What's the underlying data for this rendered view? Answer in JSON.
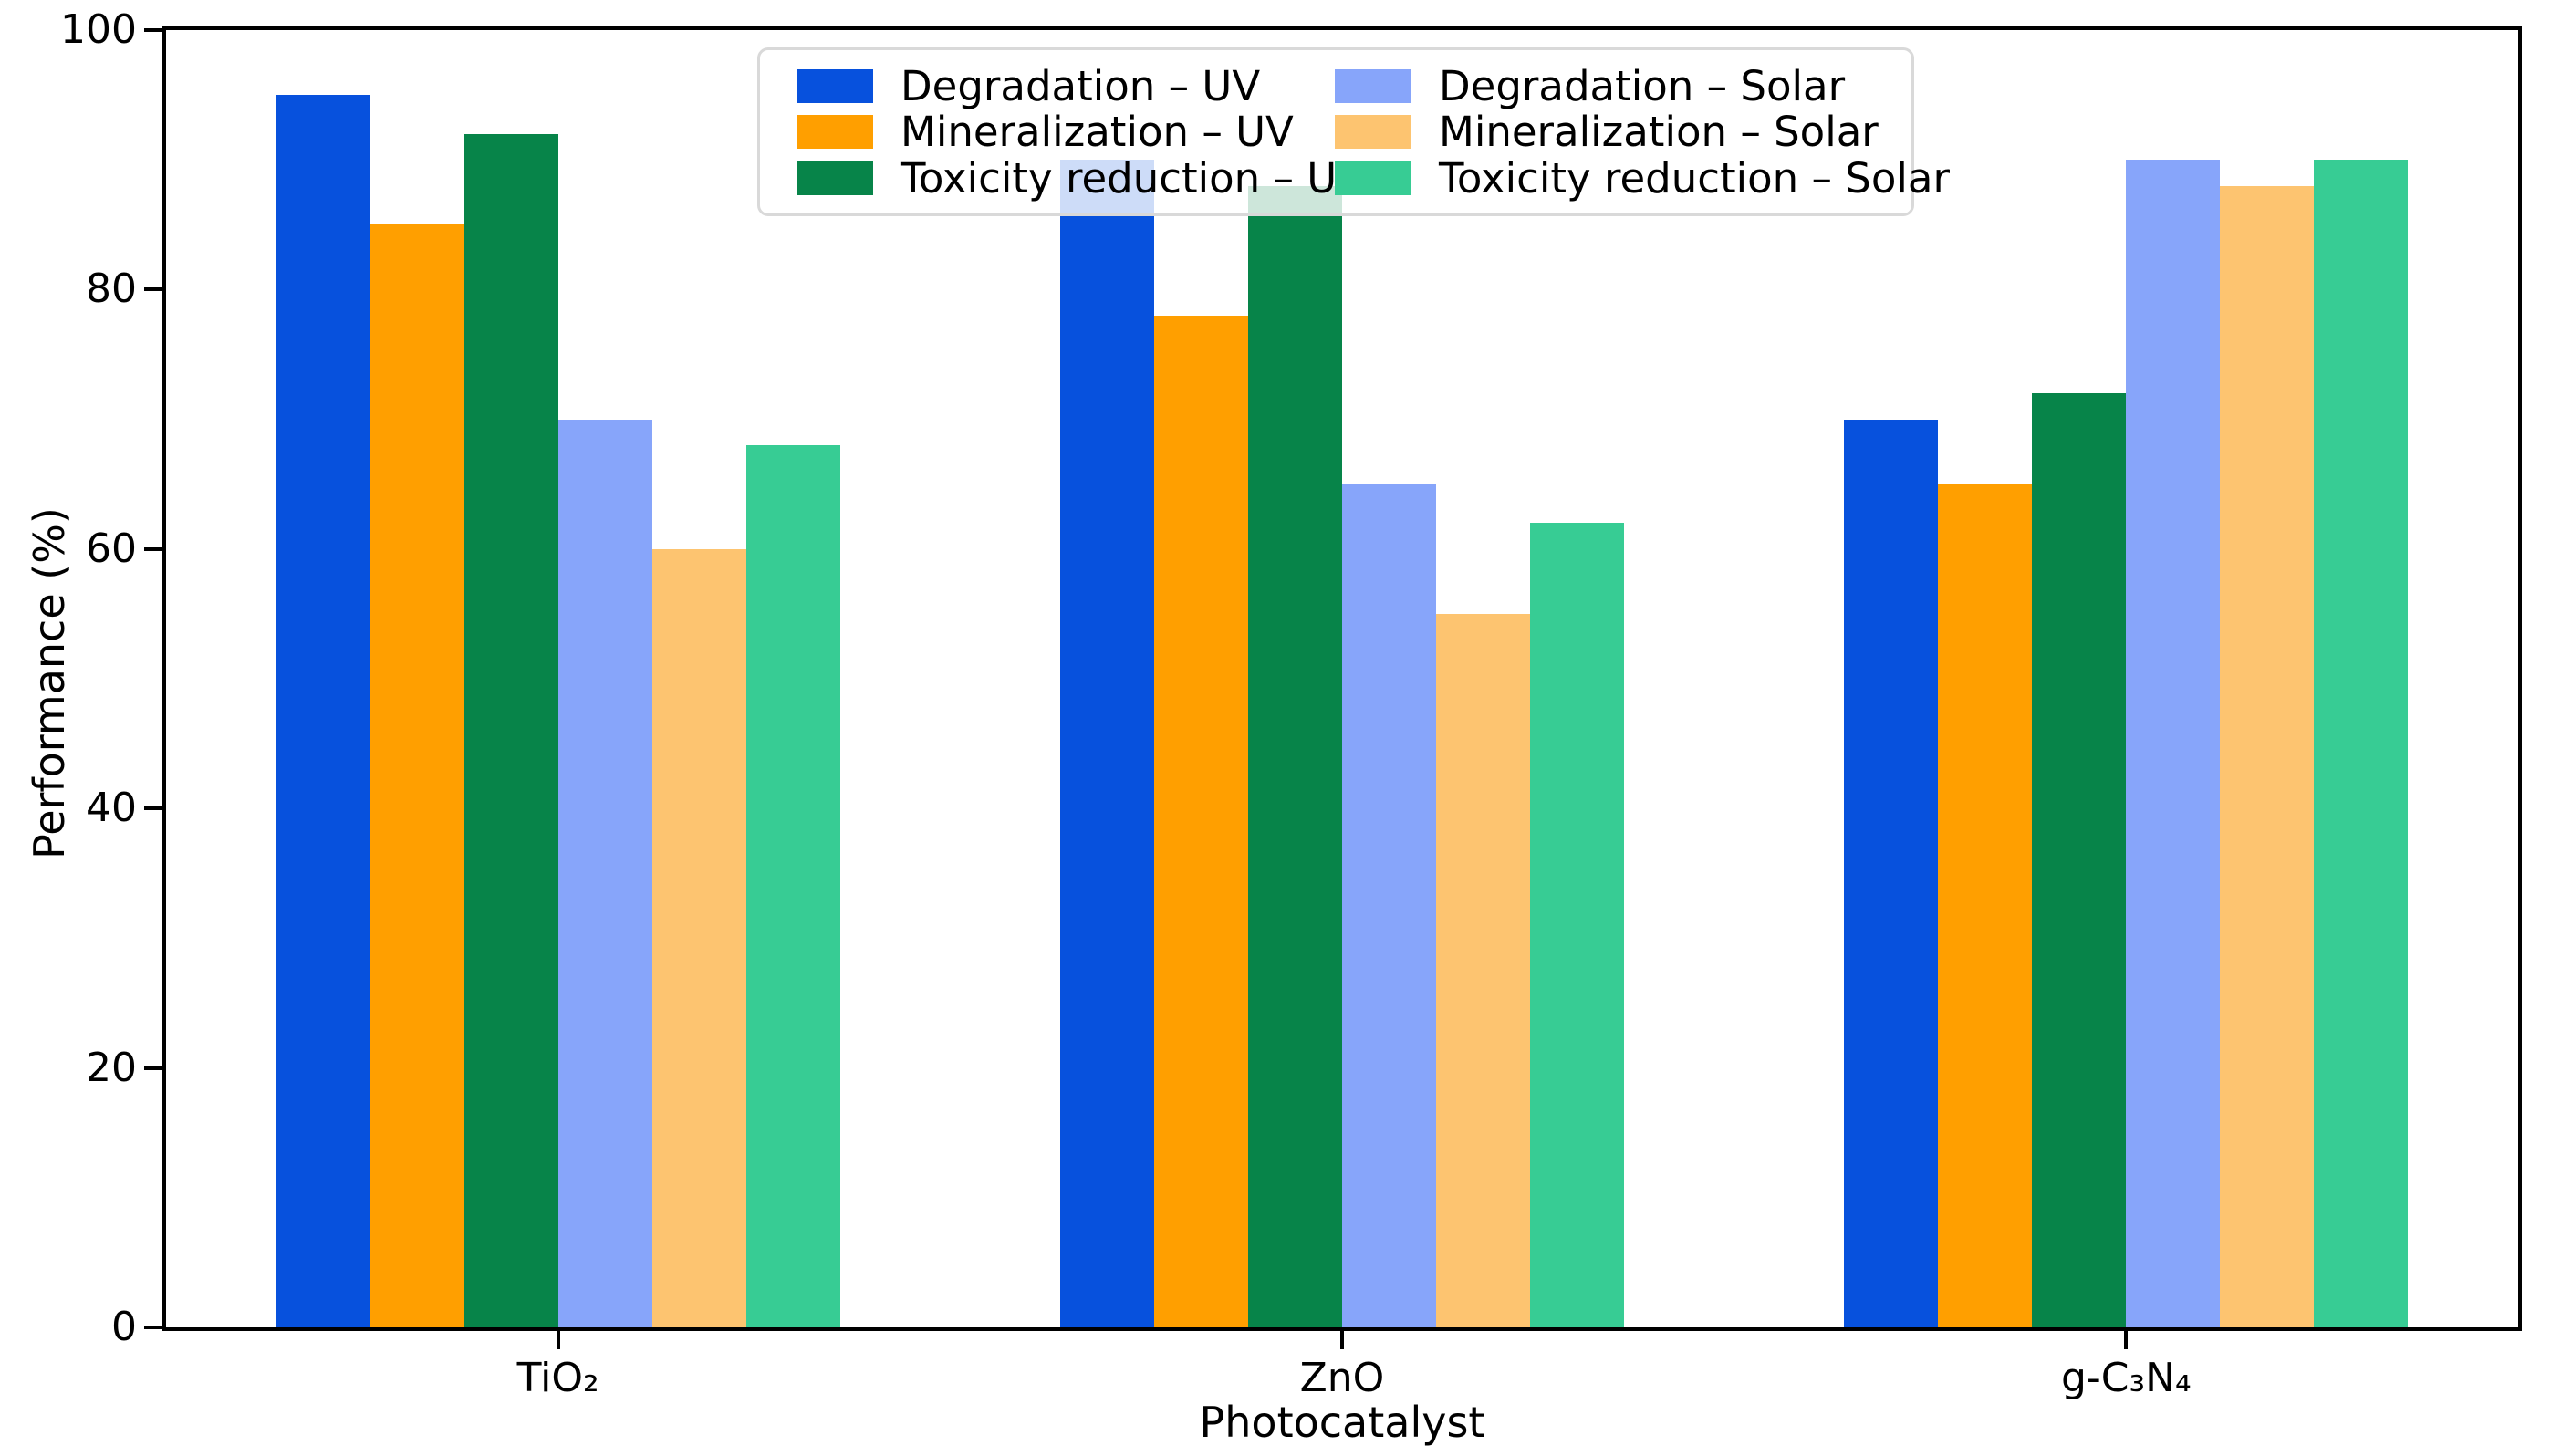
{
  "chart_data": {
    "type": "bar",
    "title": "",
    "xlabel": "Photocatalyst",
    "ylabel": "Performance (%)",
    "ylim": [
      0,
      100
    ],
    "yticks": [
      0,
      20,
      40,
      60,
      80,
      100
    ],
    "grid": false,
    "legend_position": "upper center, 2 columns, semi-transparent frame",
    "categories": [
      "TiO₂",
      "ZnO",
      "g-C₃N₄"
    ],
    "series": [
      {
        "name": "Degradation – UV",
        "color": "#0751dd",
        "values": [
          95,
          90,
          70
        ]
      },
      {
        "name": "Mineralization – UV",
        "color": "#ff9f00",
        "values": [
          85,
          78,
          65
        ]
      },
      {
        "name": "Toxicity reduction – UV",
        "color": "#078449",
        "values": [
          92,
          88,
          72
        ]
      },
      {
        "name": "Degradation – Solar",
        "color": "#87a5fa",
        "values": [
          70,
          65,
          90
        ]
      },
      {
        "name": "Mineralization – Solar",
        "color": "#fdc470",
        "values": [
          60,
          55,
          88
        ]
      },
      {
        "name": "Toxicity reduction – Solar",
        "color": "#37cc94",
        "values": [
          68,
          62,
          90
        ]
      }
    ]
  }
}
